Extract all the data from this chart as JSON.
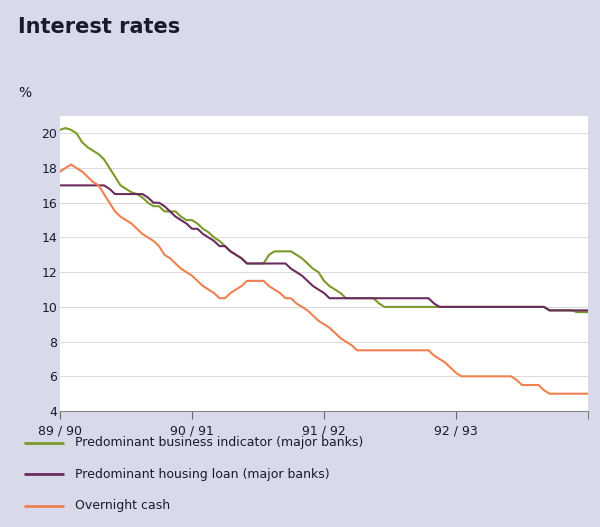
{
  "title": "Interest rates",
  "ylabel": "%",
  "background_color": "#d8daea",
  "plot_bg_color": "#ffffff",
  "title_color": "#1a1a2e",
  "ylim": [
    4,
    21
  ],
  "yticks": [
    4,
    6,
    8,
    10,
    12,
    14,
    16,
    18,
    20
  ],
  "xtick_labels": [
    "89 / 90",
    "90 / 91",
    "91 / 92",
    "92 / 93"
  ],
  "xtick_positions": [
    0,
    24,
    48,
    72
  ],
  "business_color": "#7a9a2a",
  "housing_color": "#6b2c5e",
  "cash_color": "#f08050",
  "legend_labels": [
    "Predominant business indicator (major banks)",
    "Predominant housing loan (major banks)",
    "Overnight cash"
  ],
  "business_data": [
    20.2,
    20.3,
    20.2,
    20.0,
    19.5,
    19.2,
    19.0,
    18.8,
    18.5,
    18.0,
    17.5,
    17.0,
    16.8,
    16.6,
    16.5,
    16.3,
    16.0,
    15.8,
    15.8,
    15.5,
    15.5,
    15.5,
    15.2,
    15.0,
    15.0,
    14.8,
    14.5,
    14.3,
    14.0,
    13.8,
    13.5,
    13.2,
    13.0,
    12.8,
    12.5,
    12.5,
    12.5,
    12.5,
    13.0,
    13.2,
    13.2,
    13.2,
    13.2,
    13.0,
    12.8,
    12.5,
    12.2,
    12.0,
    11.5,
    11.2,
    11.0,
    10.8,
    10.5,
    10.5,
    10.5,
    10.5,
    10.5,
    10.5,
    10.2,
    10.0,
    10.0,
    10.0,
    10.0,
    10.0,
    10.0,
    10.0,
    10.0,
    10.0,
    10.0,
    10.0,
    10.0,
    10.0,
    10.0,
    10.0,
    10.0,
    10.0,
    10.0,
    10.0,
    10.0,
    10.0,
    10.0,
    10.0,
    10.0,
    10.0,
    10.0,
    10.0,
    10.0,
    10.0,
    10.0,
    9.8,
    9.8,
    9.8,
    9.8,
    9.8,
    9.7,
    9.7,
    9.7
  ],
  "housing_data": [
    17.0,
    17.0,
    17.0,
    17.0,
    17.0,
    17.0,
    17.0,
    17.0,
    17.0,
    16.8,
    16.5,
    16.5,
    16.5,
    16.5,
    16.5,
    16.5,
    16.3,
    16.0,
    16.0,
    15.8,
    15.5,
    15.2,
    15.0,
    14.8,
    14.5,
    14.5,
    14.2,
    14.0,
    13.8,
    13.5,
    13.5,
    13.2,
    13.0,
    12.8,
    12.5,
    12.5,
    12.5,
    12.5,
    12.5,
    12.5,
    12.5,
    12.5,
    12.2,
    12.0,
    11.8,
    11.5,
    11.2,
    11.0,
    10.8,
    10.5,
    10.5,
    10.5,
    10.5,
    10.5,
    10.5,
    10.5,
    10.5,
    10.5,
    10.5,
    10.5,
    10.5,
    10.5,
    10.5,
    10.5,
    10.5,
    10.5,
    10.5,
    10.5,
    10.2,
    10.0,
    10.0,
    10.0,
    10.0,
    10.0,
    10.0,
    10.0,
    10.0,
    10.0,
    10.0,
    10.0,
    10.0,
    10.0,
    10.0,
    10.0,
    10.0,
    10.0,
    10.0,
    10.0,
    10.0,
    9.8,
    9.8,
    9.8,
    9.8,
    9.8,
    9.8,
    9.8,
    9.8
  ],
  "cash_data": [
    17.8,
    18.0,
    18.2,
    18.0,
    17.8,
    17.5,
    17.2,
    17.0,
    16.5,
    16.0,
    15.5,
    15.2,
    15.0,
    14.8,
    14.5,
    14.2,
    14.0,
    13.8,
    13.5,
    13.0,
    12.8,
    12.5,
    12.2,
    12.0,
    11.8,
    11.5,
    11.2,
    11.0,
    10.8,
    10.5,
    10.5,
    10.8,
    11.0,
    11.2,
    11.5,
    11.5,
    11.5,
    11.5,
    11.2,
    11.0,
    10.8,
    10.5,
    10.5,
    10.2,
    10.0,
    9.8,
    9.5,
    9.2,
    9.0,
    8.8,
    8.5,
    8.2,
    8.0,
    7.8,
    7.5,
    7.5,
    7.5,
    7.5,
    7.5,
    7.5,
    7.5,
    7.5,
    7.5,
    7.5,
    7.5,
    7.5,
    7.5,
    7.5,
    7.2,
    7.0,
    6.8,
    6.5,
    6.2,
    6.0,
    6.0,
    6.0,
    6.0,
    6.0,
    6.0,
    6.0,
    6.0,
    6.0,
    6.0,
    5.8,
    5.5,
    5.5,
    5.5,
    5.5,
    5.2,
    5.0,
    5.0,
    5.0,
    5.0,
    5.0,
    5.0,
    5.0,
    5.0
  ]
}
